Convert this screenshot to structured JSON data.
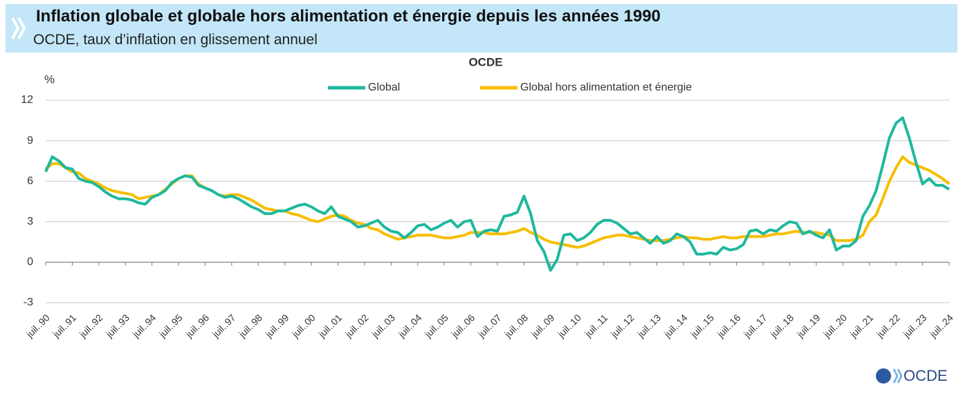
{
  "header": {
    "title": "Inflation globale et globale hors alimentation et énergie depuis les années 1990",
    "subtitle": "OCDE, taux d’inflation en glissement annuel"
  },
  "footer": {
    "logo": "OCDE"
  },
  "chart_data": {
    "type": "line",
    "title": "OCDE",
    "y_unit": "%",
    "categories": [
      "juil..90",
      null,
      null,
      null,
      "juil..91",
      null,
      null,
      null,
      "juil..92",
      null,
      null,
      null,
      "juil..93",
      null,
      null,
      null,
      "juil..94",
      null,
      null,
      null,
      "juil..95",
      null,
      null,
      null,
      "juil..96",
      null,
      null,
      null,
      "juil..97",
      null,
      null,
      null,
      "juil..98",
      null,
      null,
      null,
      "juil..99",
      null,
      null,
      null,
      "juil..00",
      null,
      null,
      null,
      "juil..01",
      null,
      null,
      null,
      "juil..02",
      null,
      null,
      null,
      "juil..03",
      null,
      null,
      null,
      "juil..04",
      null,
      null,
      null,
      "juil..05",
      null,
      null,
      null,
      "juil..06",
      null,
      null,
      null,
      "juil..07",
      null,
      null,
      null,
      "juil..08",
      null,
      null,
      null,
      "juil..09",
      null,
      null,
      null,
      "juil..10",
      null,
      null,
      null,
      "juil..11",
      null,
      null,
      null,
      "juil..12",
      null,
      null,
      null,
      "juil..13",
      null,
      null,
      null,
      "juil..14",
      null,
      null,
      null,
      "juil..15",
      null,
      null,
      null,
      "juil..16",
      null,
      null,
      null,
      "juil..17",
      null,
      null,
      null,
      "juil..18",
      null,
      null,
      null,
      "juil..19",
      null,
      null,
      null,
      "juil..20",
      null,
      null,
      null,
      "juil..21",
      null,
      null,
      null,
      "juil..22",
      null,
      null,
      null,
      "juil..23",
      null,
      null,
      null,
      "juil..24"
    ],
    "series": [
      {
        "name": "Global",
        "color": "#1fb89e",
        "values": [
          6.7,
          7.8,
          7.5,
          7.0,
          6.9,
          6.2,
          6.0,
          5.9,
          5.6,
          5.2,
          4.9,
          4.7,
          4.7,
          4.6,
          4.4,
          4.3,
          4.8,
          5.0,
          5.3,
          5.9,
          6.2,
          6.4,
          6.3,
          5.7,
          5.5,
          5.3,
          5.0,
          4.8,
          4.9,
          4.7,
          4.4,
          4.1,
          3.9,
          3.6,
          3.6,
          3.8,
          3.8,
          4.0,
          4.2,
          4.3,
          4.1,
          3.8,
          3.6,
          4.1,
          3.4,
          3.2,
          3.0,
          2.6,
          2.7,
          2.9,
          3.1,
          2.6,
          2.3,
          2.2,
          1.8,
          2.2,
          2.7,
          2.8,
          2.4,
          2.6,
          2.9,
          3.1,
          2.6,
          3.0,
          3.1,
          1.9,
          2.3,
          2.4,
          2.3,
          3.4,
          3.5,
          3.7,
          4.9,
          3.6,
          1.6,
          0.8,
          -0.6,
          0.2,
          2.0,
          2.1,
          1.6,
          1.8,
          2.2,
          2.8,
          3.1,
          3.1,
          2.9,
          2.5,
          2.1,
          2.2,
          1.8,
          1.4,
          1.9,
          1.4,
          1.6,
          2.1,
          1.9,
          1.5,
          0.6,
          0.6,
          0.7,
          0.6,
          1.1,
          0.9,
          1.0,
          1.3,
          2.3,
          2.4,
          2.1,
          2.4,
          2.3,
          2.7,
          3.0,
          2.9,
          2.1,
          2.3,
          2.0,
          1.8,
          2.4,
          0.9,
          1.2,
          1.2,
          1.6,
          3.4,
          4.2,
          5.3,
          7.2,
          9.2,
          10.3,
          10.7,
          9.2,
          7.4,
          5.8,
          6.2,
          5.7,
          5.7,
          5.4
        ]
      },
      {
        "name": "Global hors alimentation et énergie",
        "color": "#f6be00",
        "values": [
          6.9,
          7.3,
          7.3,
          7.0,
          6.7,
          6.6,
          6.2,
          6.0,
          5.8,
          5.5,
          5.3,
          5.2,
          5.1,
          5.0,
          4.7,
          4.8,
          4.9,
          5.0,
          5.4,
          5.8,
          6.2,
          6.4,
          6.4,
          5.8,
          5.5,
          5.3,
          5.0,
          4.9,
          5.0,
          5.0,
          4.8,
          4.6,
          4.3,
          4.0,
          3.9,
          3.8,
          3.8,
          3.6,
          3.5,
          3.3,
          3.1,
          3.0,
          3.2,
          3.4,
          3.5,
          3.4,
          3.1,
          2.9,
          2.8,
          2.5,
          2.4,
          2.1,
          1.9,
          1.7,
          1.8,
          1.9,
          2.0,
          2.0,
          2.0,
          1.9,
          1.8,
          1.8,
          1.9,
          2.0,
          2.2,
          2.2,
          2.2,
          2.1,
          2.1,
          2.1,
          2.2,
          2.3,
          2.5,
          2.2,
          2.0,
          1.7,
          1.5,
          1.4,
          1.3,
          1.2,
          1.1,
          1.2,
          1.4,
          1.6,
          1.8,
          1.9,
          2.0,
          2.0,
          1.9,
          1.8,
          1.7,
          1.6,
          1.6,
          1.6,
          1.7,
          1.8,
          1.9,
          1.8,
          1.8,
          1.7,
          1.7,
          1.8,
          1.9,
          1.8,
          1.8,
          1.9,
          1.9,
          1.9,
          1.9,
          2.0,
          2.1,
          2.1,
          2.2,
          2.3,
          2.2,
          2.2,
          2.2,
          2.1,
          2.0,
          1.6,
          1.6,
          1.6,
          1.7,
          2.0,
          3.0,
          3.5,
          4.7,
          6.0,
          7.0,
          7.8,
          7.4,
          7.2,
          7.0,
          6.8,
          6.5,
          6.2,
          5.8
        ]
      }
    ],
    "ylim": [
      -3,
      12
    ],
    "yticks": [
      -3,
      0,
      3,
      6,
      9,
      12
    ],
    "grid": true,
    "legend": "top"
  }
}
